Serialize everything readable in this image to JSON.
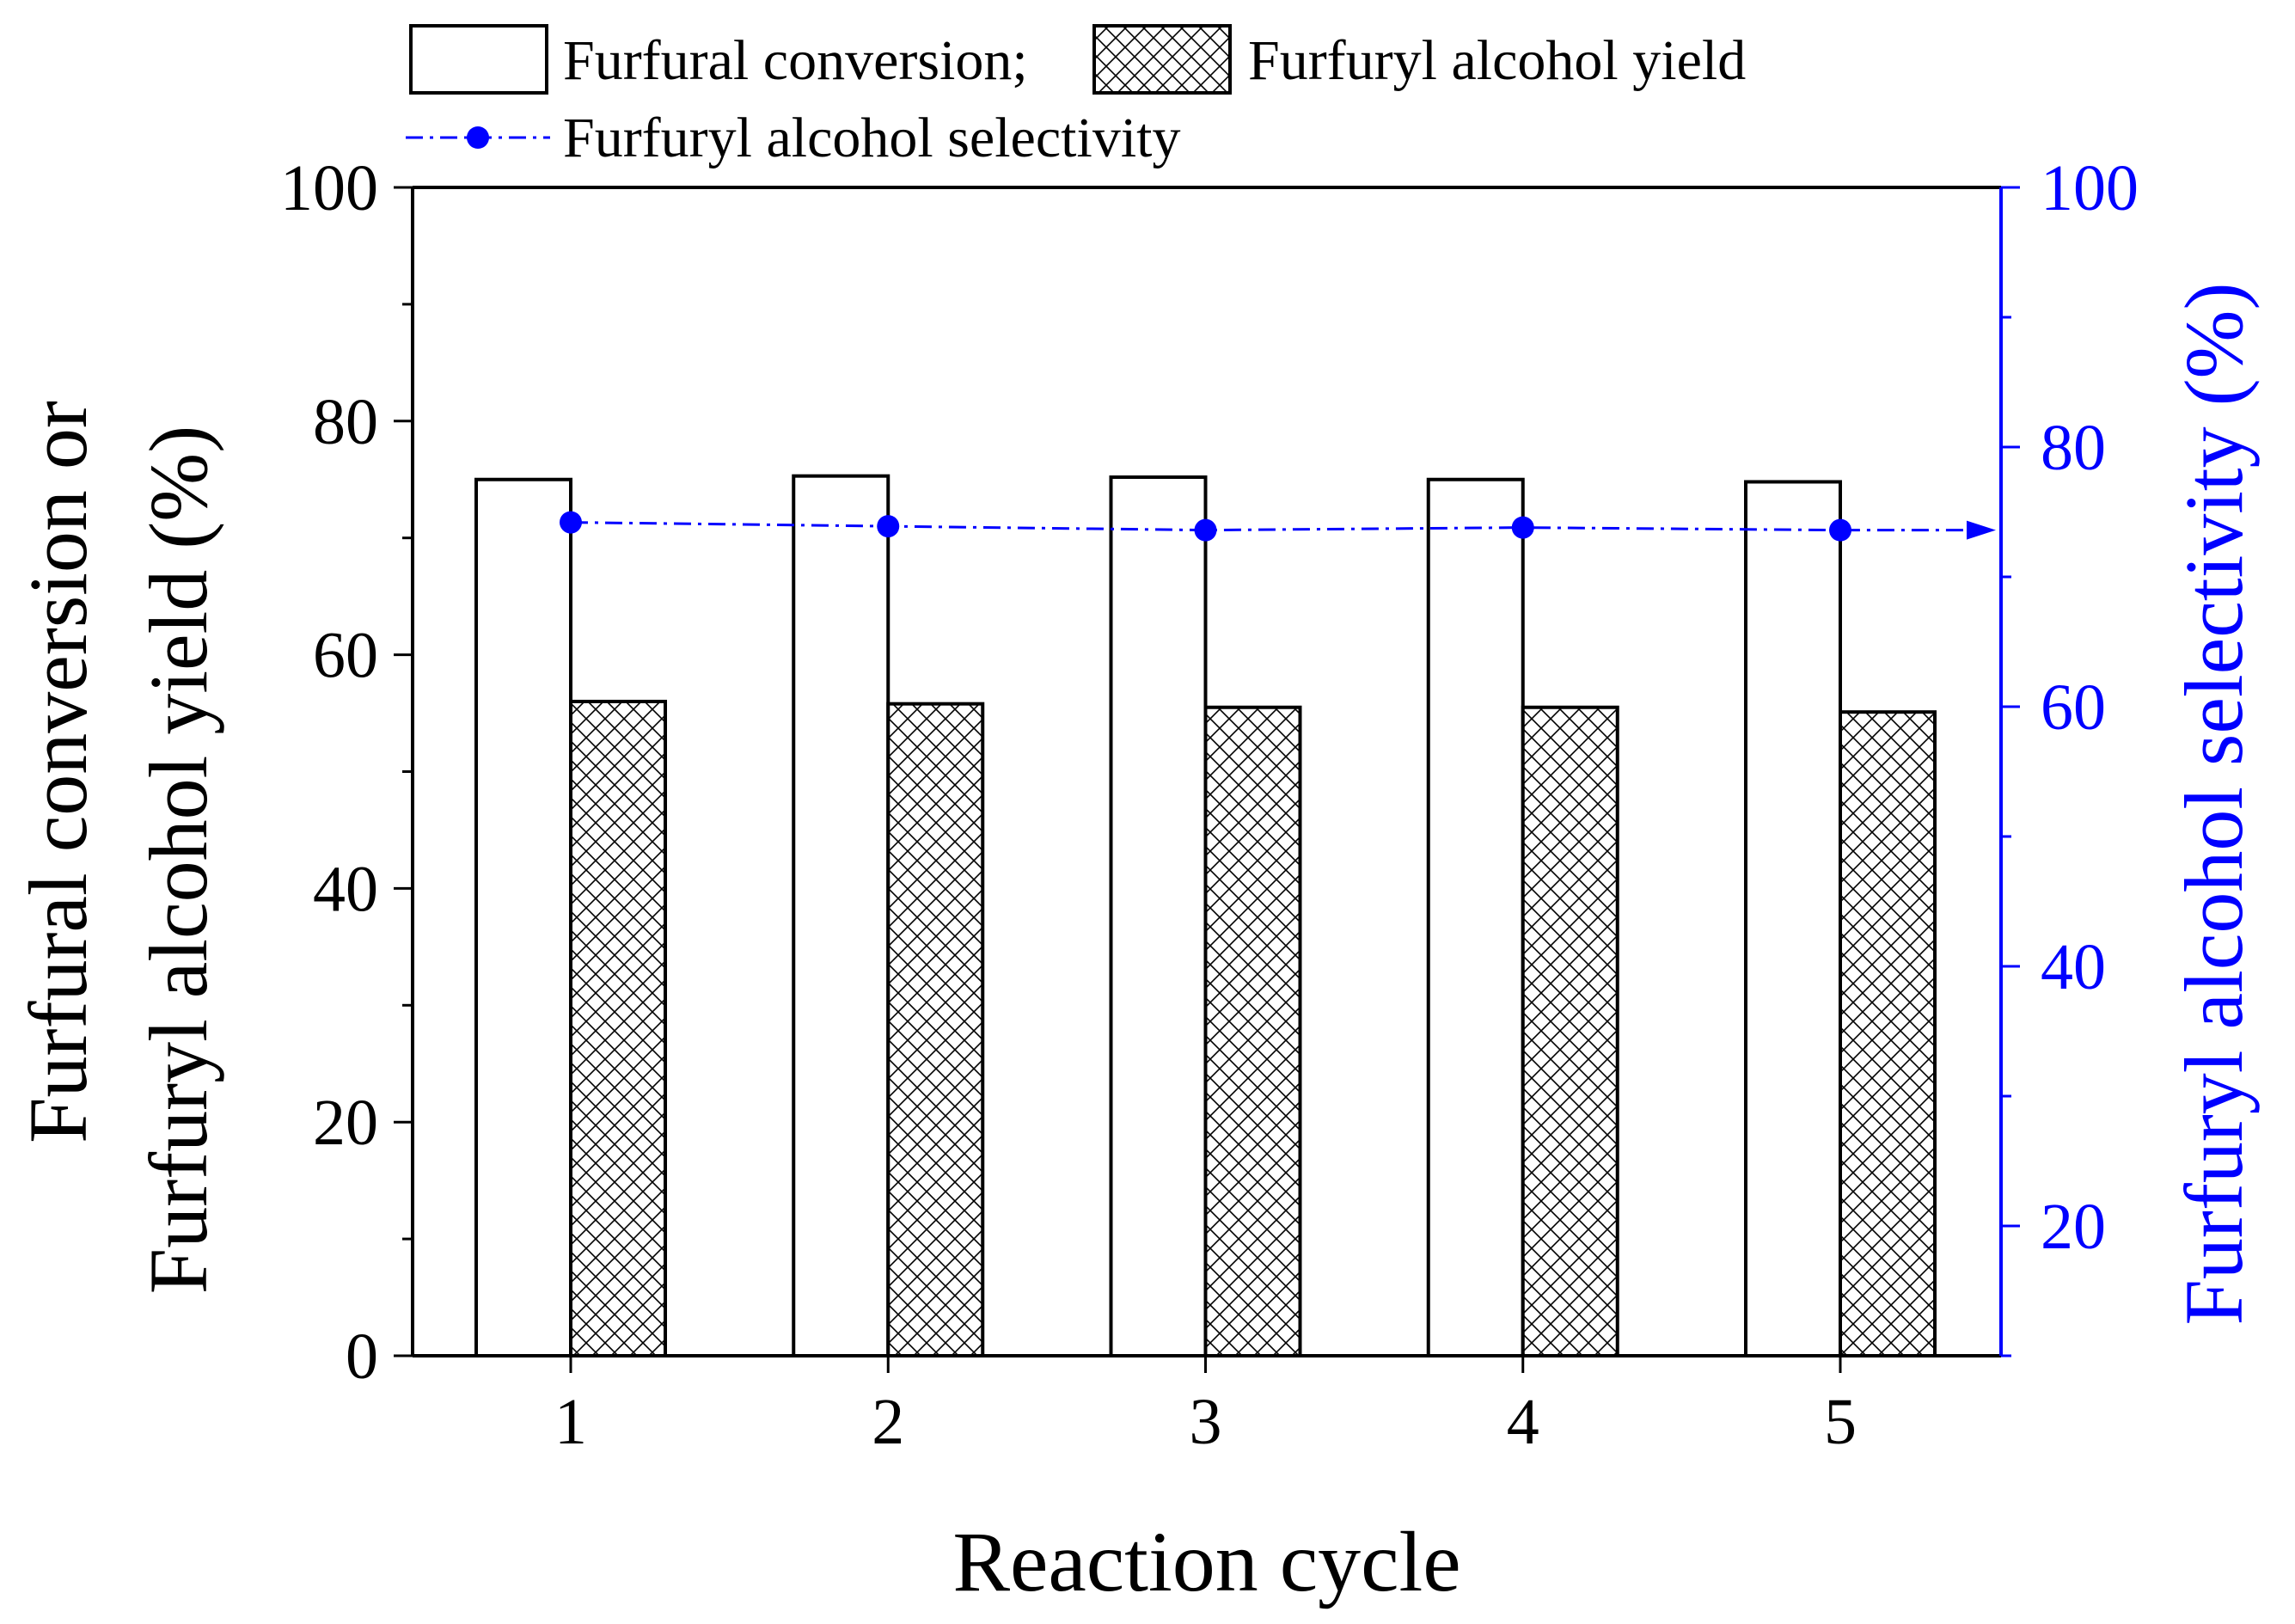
{
  "chart_data": {
    "type": "bar",
    "categories": [
      "1",
      "2",
      "3",
      "4",
      "5"
    ],
    "series": [
      {
        "name": "Furfural conversion;",
        "kind": "bar",
        "axis": "left",
        "fill": "none",
        "values": [
          75.0,
          75.3,
          75.2,
          75.0,
          74.8
        ]
      },
      {
        "name": "Furfuryl alcohol yield",
        "kind": "bar",
        "axis": "left",
        "fill": "crosshatch",
        "values": [
          56.0,
          55.8,
          55.5,
          55.5,
          55.1
        ]
      },
      {
        "name": "Furfuryl alcohol selectivity",
        "kind": "line",
        "axis": "right",
        "style": "dash-dot",
        "marker": "circle",
        "color": "#0000ff",
        "values": [
          74.2,
          73.9,
          73.6,
          73.8,
          73.6
        ]
      }
    ],
    "xlabel": "Reaction cycle",
    "ylabel_left_line1": "Furfural conversion or",
    "ylabel_left_line2": "Furfuryl alcohol yield (%)",
    "ylabel_right": "Furfuryl alcohol selectivity (%)",
    "ylim_left": [
      0,
      100
    ],
    "ylim_right": [
      10,
      100
    ],
    "yticks_left": [
      0,
      20,
      40,
      60,
      80,
      100
    ],
    "yticks_right": [
      20,
      40,
      60,
      80,
      100
    ],
    "grid": false,
    "legend_position": "top",
    "right_axis_color": "#0000ff"
  }
}
